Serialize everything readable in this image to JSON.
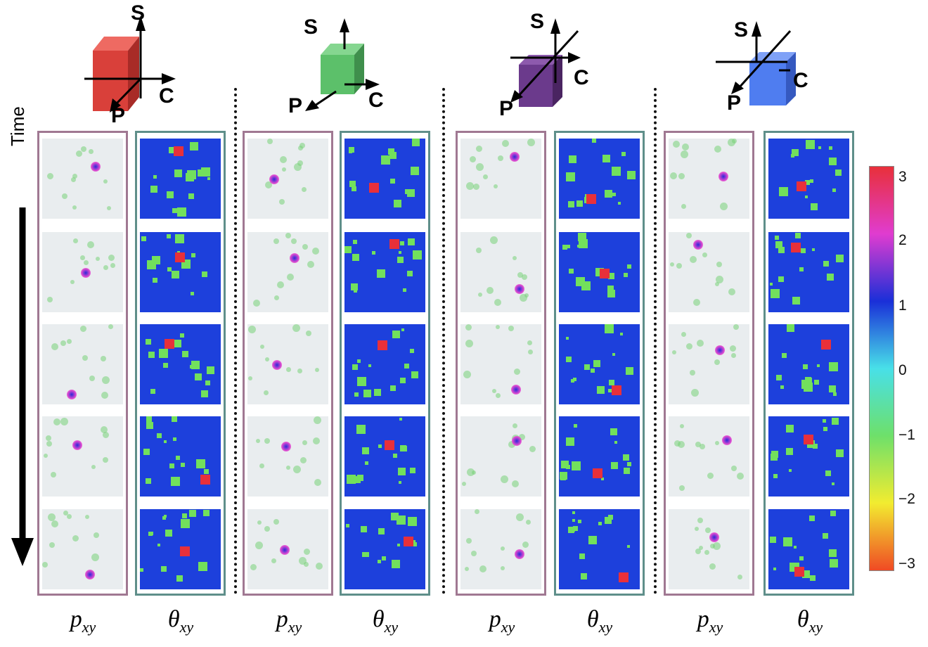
{
  "time_label": "Time",
  "axis_labels": {
    "s": "S",
    "c": "C",
    "p": "P"
  },
  "bottom_labels": {
    "p_main": "p",
    "p_sub": "xy",
    "theta_main": "θ",
    "theta_sub": "xy"
  },
  "colorbar": {
    "ticks": [
      "3",
      "2",
      "1",
      "0",
      "−1",
      "−2",
      "−3"
    ],
    "stops": [
      "#e8303a",
      "#e03cd0",
      "#1a2fd8",
      "#48e0e8",
      "#6ee06a",
      "#f2ec30",
      "#f04a24"
    ]
  },
  "groups": [
    {
      "id": "red",
      "cube_color": "#d9403a",
      "cube_dark": "#a82b27",
      "cube_light": "#ee6a62"
    },
    {
      "id": "green",
      "cube_color": "#5cc06a",
      "cube_dark": "#3f8f4c",
      "cube_light": "#85d690"
    },
    {
      "id": "purple",
      "cube_color": "#6b3a8c",
      "cube_dark": "#4a2461",
      "cube_light": "#8d5aad"
    },
    {
      "id": "blue",
      "cube_color": "#4f7df0",
      "cube_dark": "#3559c0",
      "cube_light": "#7fa1f7"
    }
  ],
  "rows": 5
}
